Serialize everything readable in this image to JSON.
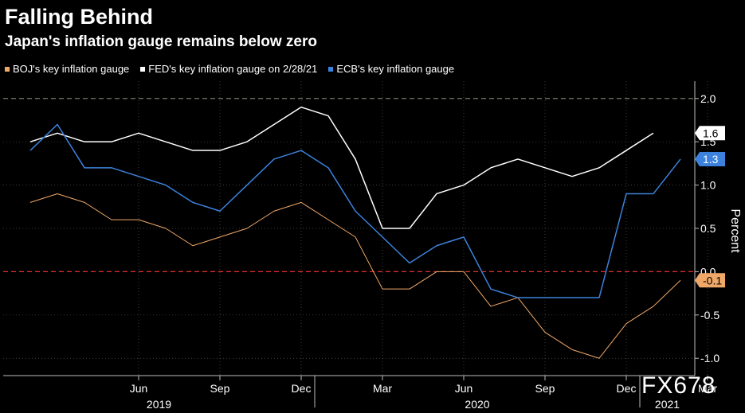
{
  "title": "Falling Behind",
  "subtitle": "Japan's inflation gauge remains below zero",
  "watermark": "FX678",
  "chart_data": {
    "type": "line",
    "title": "Falling Behind",
    "subtitle": "Japan's inflation gauge remains below zero",
    "ylabel": "Percent",
    "ylim": [
      -1.2,
      2.2
    ],
    "yticks": [
      -1.0,
      -0.5,
      0.0,
      0.5,
      1.0,
      1.5,
      2.0
    ],
    "ytick_labels": [
      "-1.0",
      "-0.5",
      "0.0",
      "0.5",
      "1.0",
      "1.5",
      "2.0"
    ],
    "x": [
      "2019-02",
      "2019-03",
      "2019-04",
      "2019-05",
      "2019-06",
      "2019-07",
      "2019-08",
      "2019-09",
      "2019-10",
      "2019-11",
      "2019-12",
      "2020-01",
      "2020-02",
      "2020-03",
      "2020-04",
      "2020-05",
      "2020-06",
      "2020-07",
      "2020-08",
      "2020-09",
      "2020-10",
      "2020-11",
      "2020-12",
      "2021-01",
      "2021-02",
      "2021-03"
    ],
    "xtick_labels": [
      {
        "label": "Jun",
        "month": "2019-06"
      },
      {
        "label": "Sep",
        "month": "2019-09"
      },
      {
        "label": "Dec",
        "month": "2019-12"
      },
      {
        "label": "Mar",
        "month": "2020-03"
      },
      {
        "label": "Jun",
        "month": "2020-06"
      },
      {
        "label": "Sep",
        "month": "2020-09"
      },
      {
        "label": "Dec",
        "month": "2020-12"
      },
      {
        "label": "Mar",
        "month": "2021-03"
      }
    ],
    "year_labels": [
      {
        "label": "2019",
        "from": "2019-01",
        "to": "2019-12"
      },
      {
        "label": "2020",
        "from": "2020-01",
        "to": "2020-12"
      },
      {
        "label": "2021",
        "from": "2021-01",
        "to": "2021-03"
      }
    ],
    "reference_lines": [
      {
        "y": 2.0,
        "color": "#7a7a6a",
        "style": "dashed"
      },
      {
        "y": 0.0,
        "color": "#e03030",
        "style": "dashed"
      }
    ],
    "series": [
      {
        "name": "BOJ's key inflation gauge",
        "color": "#f0a868",
        "width": 1,
        "values": [
          0.8,
          0.9,
          0.8,
          0.6,
          0.6,
          0.5,
          0.3,
          0.4,
          0.5,
          0.7,
          0.8,
          0.6,
          0.4,
          -0.2,
          -0.2,
          0.0,
          0.0,
          -0.4,
          -0.3,
          -0.7,
          -0.9,
          -1.0,
          -0.6,
          -0.4,
          -0.1,
          null
        ],
        "end_label": "-0.1",
        "label_bg": "#f0a868",
        "label_fg": "#000"
      },
      {
        "name": "FED's key inflation gauge on 2/28/21",
        "color": "#ffffff",
        "width": 1.5,
        "values": [
          1.5,
          1.6,
          1.5,
          1.5,
          1.6,
          1.5,
          1.4,
          1.4,
          1.5,
          1.7,
          1.9,
          1.8,
          1.3,
          0.5,
          0.5,
          0.9,
          1.0,
          1.2,
          1.3,
          1.2,
          1.1,
          1.2,
          1.4,
          1.6,
          null,
          null
        ],
        "end_label": "1.6",
        "label_bg": "#ffffff",
        "label_fg": "#000"
      },
      {
        "name": "ECB's key inflation gauge",
        "color": "#3c82dc",
        "width": 1.5,
        "values": [
          1.4,
          1.7,
          1.2,
          1.2,
          1.1,
          1.0,
          0.8,
          0.7,
          1.0,
          1.3,
          1.4,
          1.2,
          0.7,
          0.4,
          0.1,
          0.3,
          0.4,
          -0.2,
          -0.3,
          -0.3,
          -0.3,
          -0.3,
          0.9,
          0.9,
          1.3,
          null
        ],
        "end_label": "1.3",
        "label_bg": "#3c82dc",
        "label_fg": "#fff"
      }
    ],
    "legend_position": "top-left",
    "grid": true
  }
}
